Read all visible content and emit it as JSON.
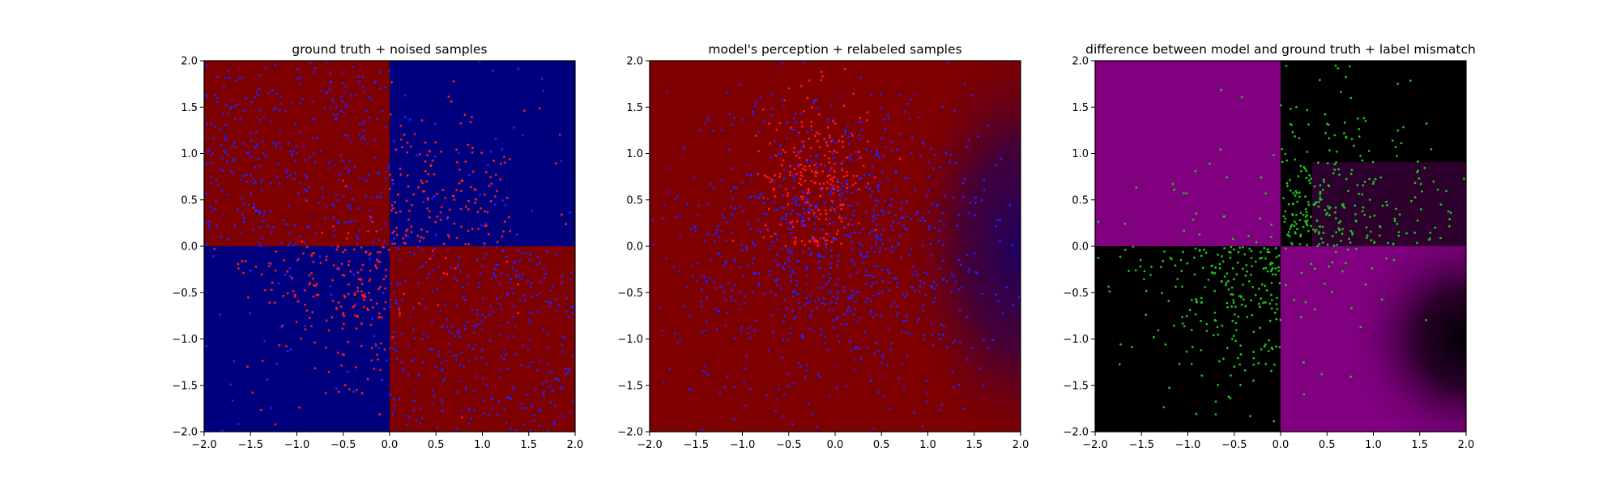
{
  "chart_data": [
    {
      "type": "scatter",
      "title": "ground truth + noised samples",
      "xlabel": "",
      "ylabel": "",
      "xlim": [
        -2.0,
        2.0
      ],
      "ylim": [
        -2.0,
        2.0
      ],
      "x_ticks": [
        "−2.0",
        "−1.5",
        "−1.0",
        "−0.5",
        "0.0",
        "0.5",
        "1.0",
        "1.5",
        "2.0"
      ],
      "y_ticks": [
        "−2.0",
        "−1.5",
        "−1.0",
        "−0.5",
        "0.0",
        "0.5",
        "1.0",
        "1.5",
        "2.0"
      ],
      "background": "xor quadrants: red where x*y<0, blue where x*y>0",
      "background_colors": {
        "class_a": "#7f0000",
        "class_b": "#00007f"
      },
      "series": [
        {
          "color": "#ff1a1a",
          "description": "points labeled red (mostly in quadrants x>0,y>0 and x<0,y<0)",
          "count_approx": 400
        },
        {
          "color": "#2222ff",
          "description": "points labeled blue (mostly in quadrants x<0,y>0 and x>0,y<0)",
          "count_approx": 800
        }
      ],
      "grid": false
    },
    {
      "type": "scatter",
      "title": "model's perception + relabeled samples",
      "xlabel": "",
      "ylabel": "",
      "xlim": [
        -2.0,
        2.0
      ],
      "ylim": [
        -2.0,
        2.0
      ],
      "x_ticks": [
        "−2.0",
        "−1.5",
        "−1.0",
        "−0.5",
        "0.0",
        "0.5",
        "1.0",
        "1.5",
        "2.0"
      ],
      "y_ticks": [
        "−2.0",
        "−1.5",
        "−1.0",
        "−0.5",
        "0.0",
        "0.5",
        "1.0",
        "1.5",
        "2.0"
      ],
      "background": "mostly red, with a blue gradient region on the right edge around y=0",
      "background_colors": {
        "class_a": "#7f0000",
        "class_b": "#00007f"
      },
      "series": [
        {
          "color": "#ff1a1a",
          "description": "cluster of red points near x in [-0.7,0.3], y in [0,1.8]",
          "count_approx": 250
        },
        {
          "color": "#2222ff",
          "description": "blue points spread across most of the plane",
          "count_approx": 1000
        }
      ],
      "grid": false
    },
    {
      "type": "scatter",
      "title": "difference between model and ground truth + label mismatch",
      "xlabel": "",
      "ylabel": "",
      "xlim": [
        -2.0,
        2.0
      ],
      "ylim": [
        -2.0,
        2.0
      ],
      "x_ticks": [
        "−2.0",
        "−1.5",
        "−1.0",
        "−0.5",
        "0.0",
        "0.5",
        "1.0",
        "1.5",
        "2.0"
      ],
      "y_ticks": [
        "−2.0",
        "−1.5",
        "−1.0",
        "−0.5",
        "0.0",
        "0.5",
        "1.0",
        "1.5",
        "2.0"
      ],
      "background": "magenta where model disagrees with ground truth, black where it agrees",
      "background_colors": {
        "mismatch": "#800080",
        "match": "#000000"
      },
      "series": [
        {
          "color": "#1fbf1f",
          "description": "mismatched samples, concentrated in quadrants x>0,y>0 and x<0,y<0",
          "count_approx": 600
        }
      ],
      "grid": false
    }
  ]
}
